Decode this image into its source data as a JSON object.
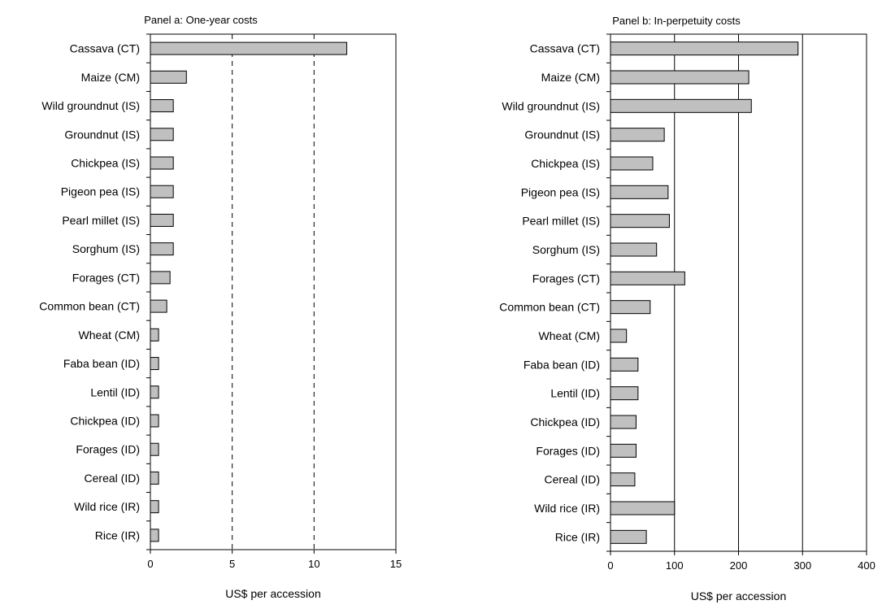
{
  "chart_data": [
    {
      "type": "bar",
      "orientation": "horizontal",
      "title": "Panel a: One-year costs",
      "xlabel": "US$ per accession",
      "ylabel": "",
      "xlim": [
        0,
        15
      ],
      "xticks": [
        0,
        5,
        10,
        15
      ],
      "grid": "vertical-dashed",
      "bar_color": "#c0c0c0",
      "categories": [
        "Cassava (CT)",
        "Maize (CM)",
        "Wild groundnut (IS)",
        "Groundnut (IS)",
        "Chickpea (IS)",
        "Pigeon pea (IS)",
        "Pearl millet (IS)",
        "Sorghum (IS)",
        "Forages (CT)",
        "Common bean (CT)",
        "Wheat (CM)",
        "Faba bean (ID)",
        "Lentil (ID)",
        "Chickpea (ID)",
        "Forages (ID)",
        "Cereal (ID)",
        "Wild rice (IR)",
        "Rice (IR)"
      ],
      "values": [
        12.0,
        2.2,
        1.4,
        1.4,
        1.4,
        1.4,
        1.4,
        1.4,
        1.2,
        1.0,
        0.5,
        0.5,
        0.5,
        0.5,
        0.5,
        0.5,
        0.5,
        0.5
      ]
    },
    {
      "type": "bar",
      "orientation": "horizontal",
      "title": "Panel b: In-perpetuity costs",
      "xlabel": "US$ per accession",
      "ylabel": "",
      "xlim": [
        0,
        400
      ],
      "xticks": [
        0,
        100,
        200,
        300,
        400
      ],
      "grid": "vertical-solid",
      "bar_color": "#c0c0c0",
      "categories": [
        "Cassava (CT)",
        "Maize (CM)",
        "Wild groundnut (IS)",
        "Groundnut (IS)",
        "Chickpea (IS)",
        "Pigeon pea (IS)",
        "Pearl millet (IS)",
        "Sorghum (IS)",
        "Forages (CT)",
        "Common bean (CT)",
        "Wheat (CM)",
        "Faba bean (ID)",
        "Lentil (ID)",
        "Chickpea (ID)",
        "Forages (ID)",
        "Cereal (ID)",
        "Wild rice (IR)",
        "Rice (IR)"
      ],
      "values": [
        293,
        216,
        220,
        84,
        66,
        90,
        92,
        72,
        116,
        62,
        25,
        43,
        43,
        40,
        40,
        38,
        100,
        56
      ]
    }
  ]
}
